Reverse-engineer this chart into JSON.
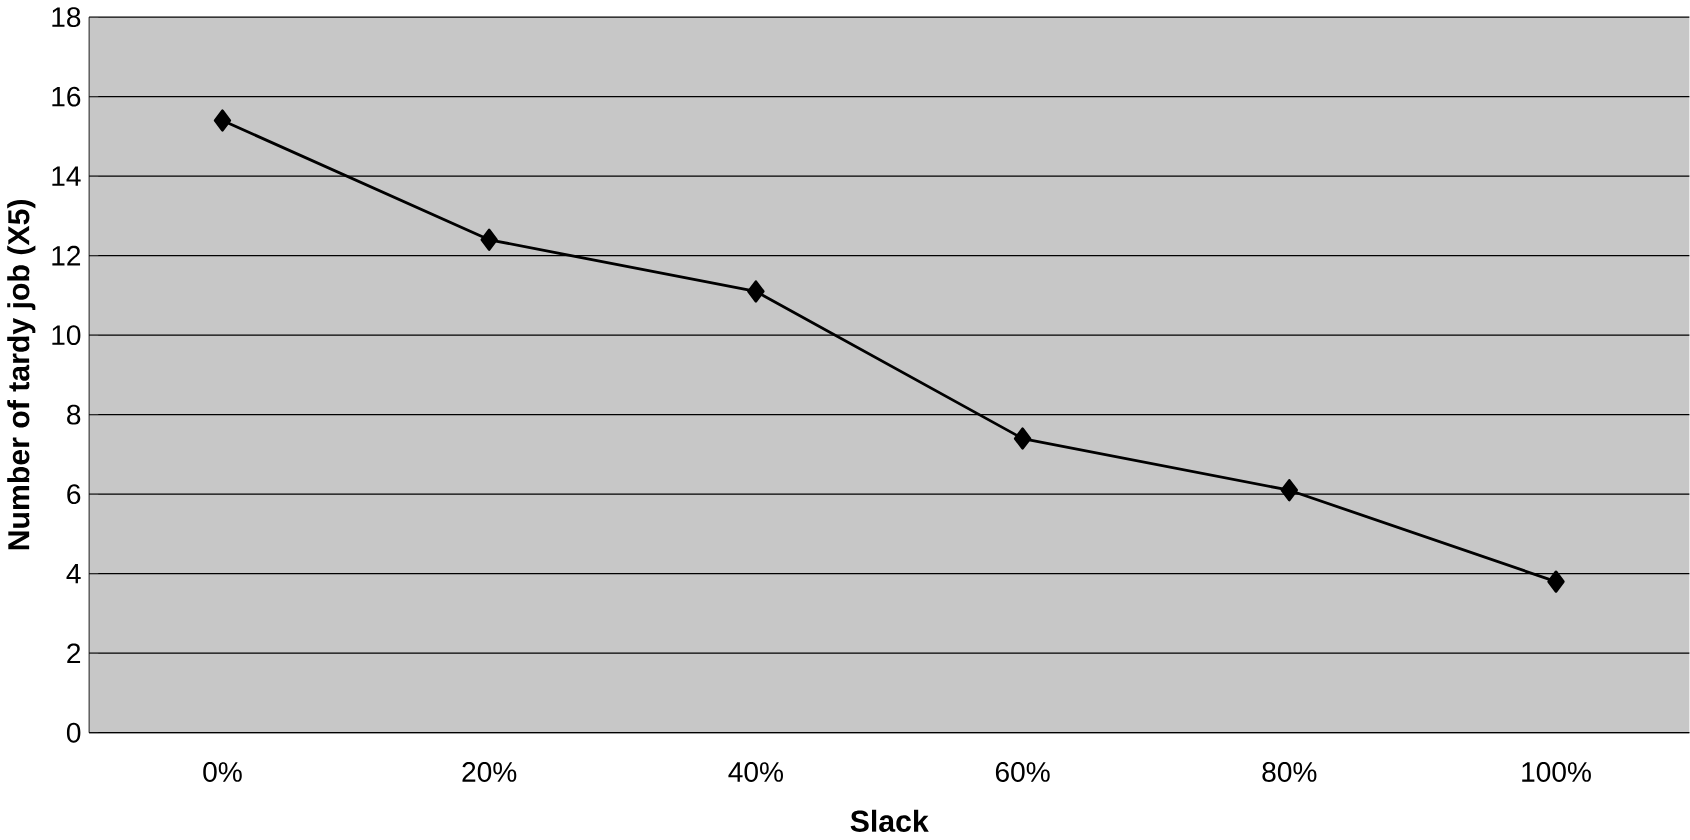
{
  "chart_data": {
    "type": "line",
    "xlabel": "Slack",
    "ylabel": "Number of tardy job (X5)",
    "categories": [
      "0%",
      "20%",
      "40%",
      "60%",
      "80%",
      "100%"
    ],
    "series": [
      {
        "color": "#000000",
        "values": [
          15.4,
          12.4,
          11.1,
          7.4,
          6.1,
          3.8
        ]
      }
    ],
    "ylim": [
      0,
      18
    ],
    "yticks": [
      0,
      2,
      4,
      6,
      8,
      10,
      12,
      14,
      16,
      18
    ],
    "grid": "y",
    "marker": "diamond",
    "line_style": "solid"
  }
}
